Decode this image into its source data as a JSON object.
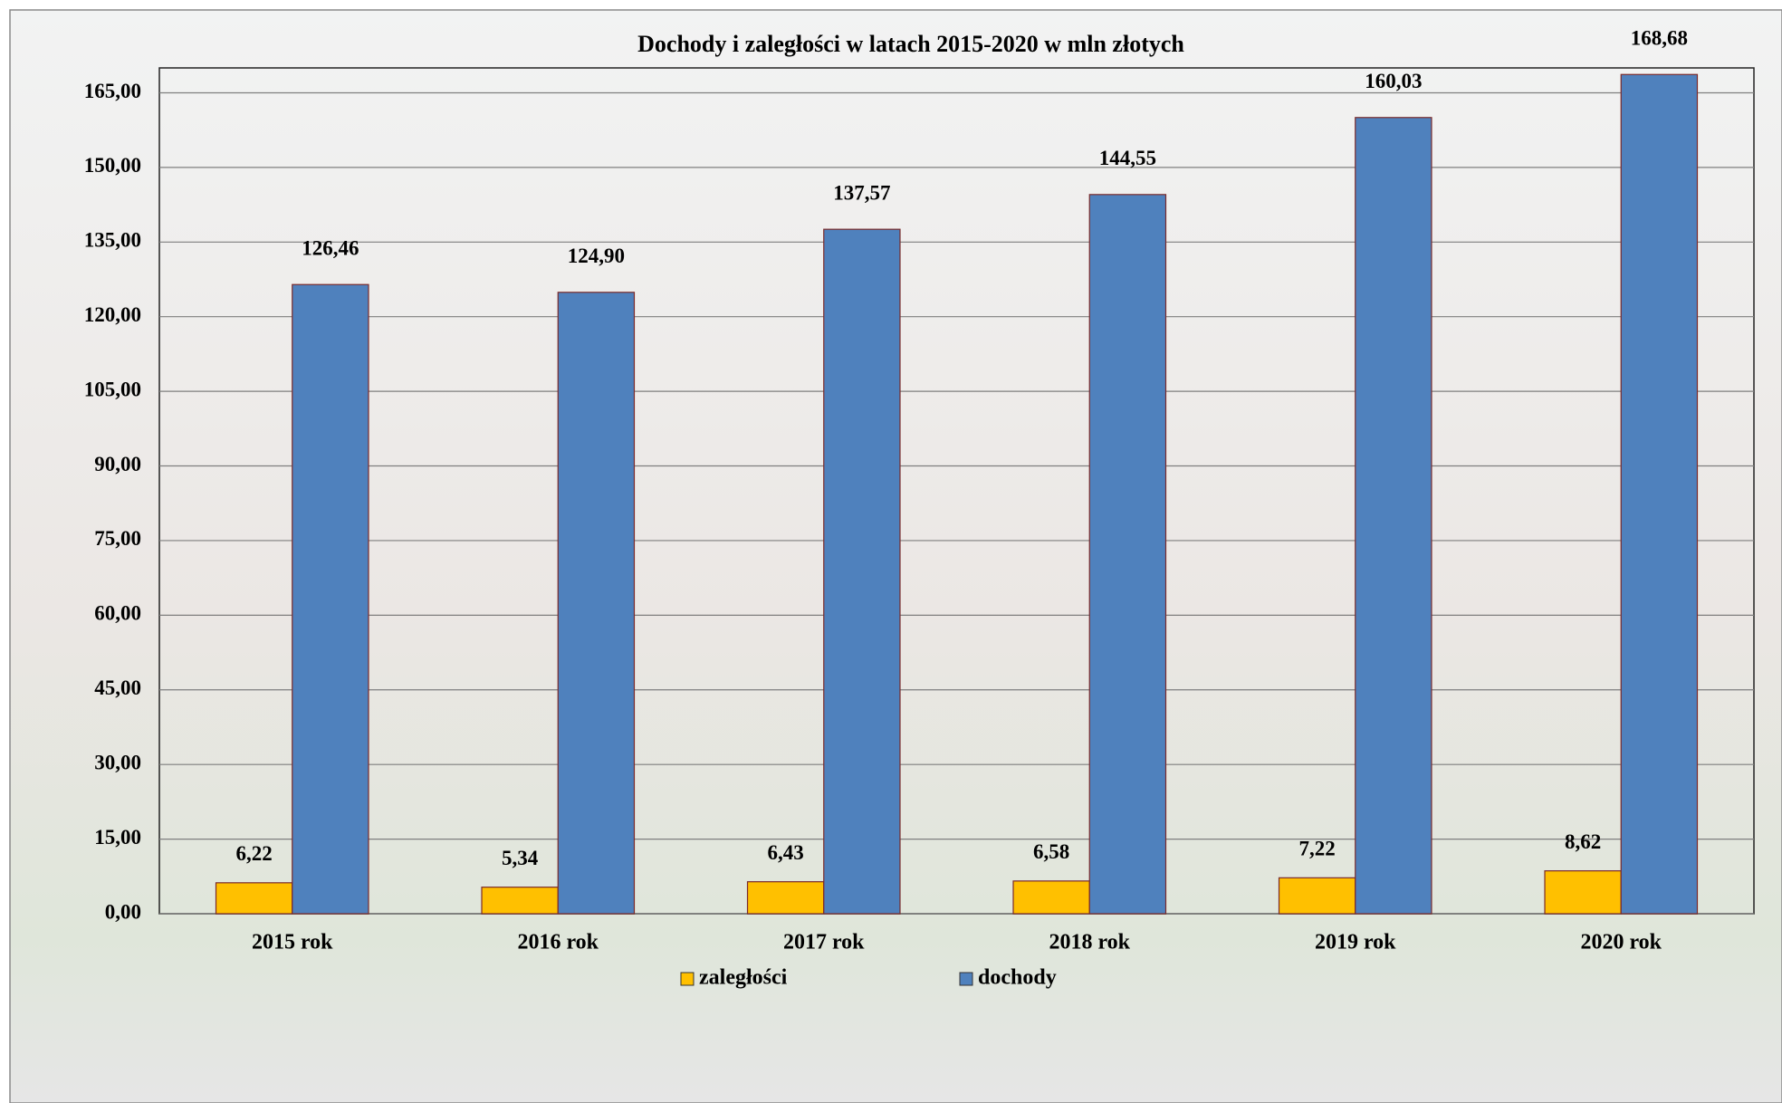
{
  "chart_data": {
    "type": "bar",
    "title": "Dochody i zaległości w latach 2015-2020 w mln złotych",
    "categories": [
      "2015 rok",
      "2016 rok",
      "2017 rok",
      "2018 rok",
      "2019 rok",
      "2020 rok"
    ],
    "series": [
      {
        "name": "zaległości",
        "color": "#ffc000",
        "values": [
          6.22,
          5.34,
          6.43,
          6.58,
          7.22,
          8.62
        ],
        "value_labels": [
          "6,22",
          "5,34",
          "6,43",
          "6,58",
          "7,22",
          "8,62"
        ]
      },
      {
        "name": "dochody",
        "color": "#4f81bd",
        "values": [
          126.46,
          124.9,
          137.57,
          144.55,
          160.03,
          168.68
        ],
        "value_labels": [
          "126,46",
          "124,90",
          "137,57",
          "144,55",
          "160,03",
          "168,68"
        ]
      }
    ],
    "ylim": [
      0,
      170
    ],
    "yticks": [
      {
        "value": 0,
        "label": "0,00"
      },
      {
        "value": 15,
        "label": "15,00"
      },
      {
        "value": 30,
        "label": "30,00"
      },
      {
        "value": 45,
        "label": "45,00"
      },
      {
        "value": 60,
        "label": "60,00"
      },
      {
        "value": 75,
        "label": "75,00"
      },
      {
        "value": 90,
        "label": "90,00"
      },
      {
        "value": 105,
        "label": "105,00"
      },
      {
        "value": 120,
        "label": "120,00"
      },
      {
        "value": 135,
        "label": "135,00"
      },
      {
        "value": 150,
        "label": "150,00"
      },
      {
        "value": 165,
        "label": "165,00"
      }
    ],
    "grid": true,
    "legend": "bottom"
  }
}
